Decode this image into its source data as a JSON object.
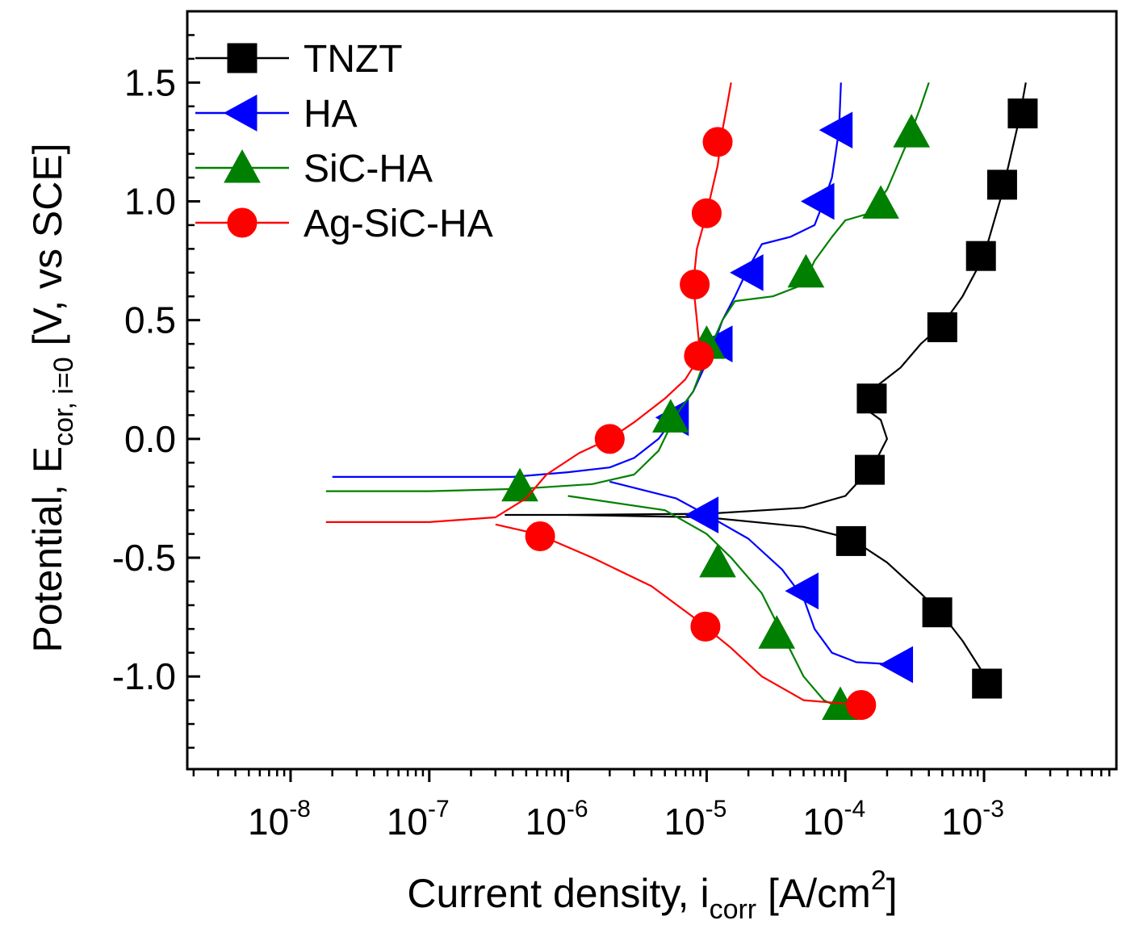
{
  "chart_data": {
    "type": "line",
    "title": "",
    "xlabel": {
      "main": "Current density, i",
      "sub": "corr",
      "unit": " [A/cm",
      "sup": "2",
      "end": "]"
    },
    "ylabel": {
      "main": "Potential, E",
      "sub": "cor, i=0",
      "unit": " [V, vs SCE]"
    },
    "x_scale": "log",
    "xlim": [
      1.8e-09,
      0.009
    ],
    "ylim": [
      -1.39,
      1.8
    ],
    "x_ticks": [
      {
        "value": 1e-08,
        "base": "10",
        "exp": "-8"
      },
      {
        "value": 1e-07,
        "base": "10",
        "exp": "-7"
      },
      {
        "value": 1e-06,
        "base": "10",
        "exp": "-6"
      },
      {
        "value": 1e-05,
        "base": "10",
        "exp": "-5"
      },
      {
        "value": 0.0001,
        "base": "10",
        "exp": "-4"
      },
      {
        "value": 0.001,
        "base": "10",
        "exp": "-3"
      }
    ],
    "y_ticks": [
      {
        "value": 1.5,
        "label": "1.5"
      },
      {
        "value": 1.0,
        "label": "1.0"
      },
      {
        "value": 0.5,
        "label": "0.5"
      },
      {
        "value": 0.0,
        "label": "0.0"
      },
      {
        "value": -0.5,
        "label": "-0.5"
      },
      {
        "value": -1.0,
        "label": "-1.0"
      }
    ],
    "legend_position": "top-left",
    "series": [
      {
        "name": "TNZT",
        "color": "#000000",
        "marker": "square",
        "curve": [
          [
            3.5e-07,
            -0.32
          ],
          [
            1e-06,
            -0.32
          ],
          [
            1e-05,
            -0.315
          ],
          [
            5e-05,
            -0.29
          ],
          [
            0.0001,
            -0.24
          ],
          [
            0.00016,
            -0.11
          ],
          [
            0.0002,
            0.0
          ],
          [
            0.00018,
            0.08
          ],
          [
            0.00013,
            0.14
          ],
          [
            0.00015,
            0.2
          ],
          [
            0.00025,
            0.3
          ],
          [
            0.00035,
            0.4
          ],
          [
            0.0005,
            0.48
          ],
          [
            0.0007,
            0.6
          ],
          [
            0.001,
            0.77
          ],
          [
            0.0013,
            1.0
          ],
          [
            0.0015,
            1.15
          ],
          [
            0.0018,
            1.35
          ],
          [
            0.002,
            1.5
          ]
        ],
        "curve2": [
          [
            1e-06,
            -0.32
          ],
          [
            1e-05,
            -0.33
          ],
          [
            5e-05,
            -0.37
          ],
          [
            0.00011,
            -0.42
          ],
          [
            0.0002,
            -0.52
          ],
          [
            0.00035,
            -0.65
          ],
          [
            0.0005,
            -0.74
          ],
          [
            0.0007,
            -0.85
          ],
          [
            0.0011,
            -1.03
          ]
        ],
        "points": [
          [
            0.000155,
            0.17
          ],
          [
            0.00015,
            -0.13
          ],
          [
            0.00011,
            -0.43
          ],
          [
            0.00046,
            -0.73
          ],
          [
            0.00105,
            -1.03
          ],
          [
            0.0005,
            0.47
          ],
          [
            0.00095,
            0.77
          ],
          [
            0.00135,
            1.07
          ],
          [
            0.0019,
            1.37
          ]
        ]
      },
      {
        "name": "HA",
        "color": "#0000ff",
        "marker": "triangle-left",
        "curve": [
          [
            2e-08,
            -0.16
          ],
          [
            1e-07,
            -0.16
          ],
          [
            4e-07,
            -0.16
          ],
          [
            1e-06,
            -0.14
          ],
          [
            2e-06,
            -0.12
          ],
          [
            3e-06,
            -0.08
          ],
          [
            4.5e-06,
            0.0
          ],
          [
            6e-06,
            0.1
          ],
          [
            8e-06,
            0.2
          ],
          [
            1.05e-05,
            0.35
          ],
          [
            1.3e-05,
            0.5
          ],
          [
            1.6e-05,
            0.6
          ],
          [
            2e-05,
            0.72
          ],
          [
            2.5e-05,
            0.82
          ],
          [
            4e-05,
            0.85
          ],
          [
            6e-05,
            0.9
          ],
          [
            7e-05,
            1.0
          ],
          [
            8e-05,
            1.1
          ],
          [
            8.5e-05,
            1.2
          ],
          [
            9e-05,
            1.3
          ],
          [
            9.3e-05,
            1.5
          ]
        ],
        "curve2": [
          [
            2e-06,
            -0.18
          ],
          [
            6e-06,
            -0.25
          ],
          [
            1e-05,
            -0.32
          ],
          [
            2e-05,
            -0.42
          ],
          [
            3.5e-05,
            -0.55
          ],
          [
            5e-05,
            -0.67
          ],
          [
            6e-05,
            -0.8
          ],
          [
            8e-05,
            -0.9
          ],
          [
            0.00012,
            -0.94
          ],
          [
            0.00024,
            -0.95
          ]
        ],
        "points": [
          [
            5.8e-06,
            0.09
          ],
          [
            1.2e-05,
            0.4
          ],
          [
            2e-05,
            0.7
          ],
          [
            6.5e-05,
            1.0
          ],
          [
            8.8e-05,
            1.3
          ],
          [
            9.5e-06,
            -0.32
          ],
          [
            5e-05,
            -0.64
          ],
          [
            0.00024,
            -0.95
          ]
        ]
      },
      {
        "name": "SiC-HA",
        "color": "#008000",
        "marker": "triangle-up",
        "curve": [
          [
            1.8e-08,
            -0.22
          ],
          [
            1e-07,
            -0.22
          ],
          [
            4.5e-07,
            -0.21
          ],
          [
            1.5e-06,
            -0.19
          ],
          [
            3e-06,
            -0.15
          ],
          [
            4.5e-06,
            -0.05
          ],
          [
            6e-06,
            0.1
          ],
          [
            8e-06,
            0.2
          ],
          [
            1e-05,
            0.35
          ],
          [
            1.3e-05,
            0.5
          ],
          [
            1.6e-05,
            0.58
          ],
          [
            3e-05,
            0.6
          ],
          [
            5e-05,
            0.65
          ],
          [
            6e-05,
            0.75
          ],
          [
            8e-05,
            0.85
          ],
          [
            0.0001,
            0.92
          ],
          [
            0.00015,
            0.95
          ],
          [
            0.0002,
            1.05
          ],
          [
            0.00028,
            1.25
          ],
          [
            0.00035,
            1.4
          ],
          [
            0.0004,
            1.5
          ]
        ],
        "curve2": [
          [
            1e-06,
            -0.24
          ],
          [
            5e-06,
            -0.3
          ],
          [
            1e-05,
            -0.4
          ],
          [
            1.5e-05,
            -0.5
          ],
          [
            2.5e-05,
            -0.65
          ],
          [
            3.5e-05,
            -0.82
          ],
          [
            5e-05,
            -1.0
          ],
          [
            7e-05,
            -1.1
          ],
          [
            9e-05,
            -1.13
          ]
        ],
        "points": [
          [
            4.5e-07,
            -0.2
          ],
          [
            5.5e-06,
            0.09
          ],
          [
            1e-05,
            0.4
          ],
          [
            5.2e-05,
            0.7
          ],
          [
            0.00018,
            0.99
          ],
          [
            0.0003,
            1.29
          ],
          [
            1.2e-05,
            -0.52
          ],
          [
            3.2e-05,
            -0.82
          ],
          [
            9.2e-05,
            -1.12
          ]
        ]
      },
      {
        "name": "Ag-SiC-HA",
        "color": "#ff0000",
        "marker": "circle",
        "curve": [
          [
            1.8e-08,
            -0.35
          ],
          [
            1e-07,
            -0.35
          ],
          [
            3e-07,
            -0.33
          ],
          [
            5e-07,
            -0.25
          ],
          [
            7e-07,
            -0.15
          ],
          [
            1.2e-06,
            -0.06
          ],
          [
            2e-06,
            0.0
          ],
          [
            3e-06,
            0.07
          ],
          [
            5e-06,
            0.17
          ],
          [
            7e-06,
            0.25
          ],
          [
            9e-06,
            0.35
          ],
          [
            8.5e-06,
            0.5
          ],
          [
            8e-06,
            0.65
          ],
          [
            8.5e-06,
            0.8
          ],
          [
            1e-05,
            0.95
          ],
          [
            1.2e-05,
            1.15
          ],
          [
            1.3e-05,
            1.3
          ],
          [
            1.4e-05,
            1.4
          ],
          [
            1.5e-05,
            1.5
          ]
        ],
        "curve2": [
          [
            3e-07,
            -0.36
          ],
          [
            6e-07,
            -0.4
          ],
          [
            1.5e-06,
            -0.5
          ],
          [
            4e-06,
            -0.62
          ],
          [
            8e-06,
            -0.75
          ],
          [
            1.5e-05,
            -0.88
          ],
          [
            2.5e-05,
            -1.0
          ],
          [
            5e-05,
            -1.1
          ],
          [
            0.00013,
            -1.12
          ]
        ],
        "points": [
          [
            2e-06,
            0.0
          ],
          [
            8.8e-06,
            0.35
          ],
          [
            8.2e-06,
            0.65
          ],
          [
            1e-05,
            0.95
          ],
          [
            1.2e-05,
            1.25
          ],
          [
            6.3e-07,
            -0.41
          ],
          [
            9.8e-06,
            -0.79
          ],
          [
            0.00013,
            -1.12
          ]
        ]
      }
    ]
  }
}
